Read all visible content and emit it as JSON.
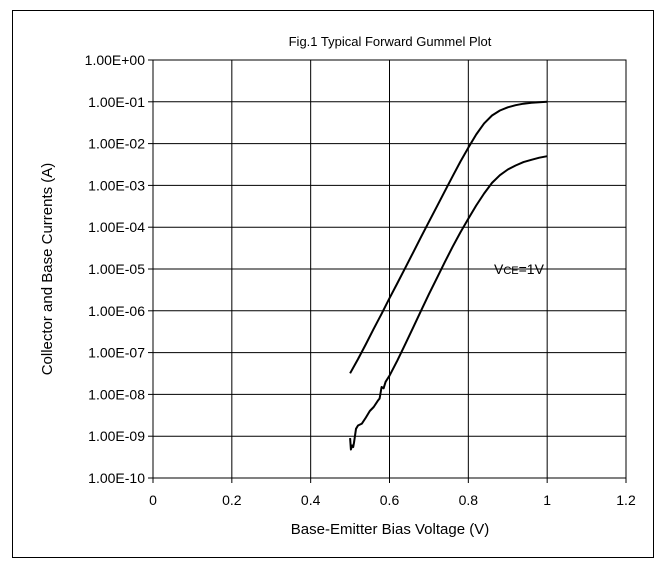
{
  "chart_data": {
    "type": "line",
    "title": "Fig.1 Typical Forward Gummel Plot",
    "xlabel": "Base-Emitter Bias Voltage (V)",
    "ylabel": "Collector and Base Currents (A)",
    "xlim": [
      0,
      1.2
    ],
    "ylim": [
      1e-10,
      1
    ],
    "yscale": "log",
    "grid": true,
    "x_ticks": [
      "0",
      "0.2",
      "0.4",
      "0.6",
      "0.8",
      "1",
      "1.2"
    ],
    "y_ticks": [
      "1.00E+00",
      "1.00E-01",
      "1.00E-02",
      "1.00E-03",
      "1.00E-04",
      "1.00E-05",
      "1.00E-06",
      "1.00E-07",
      "1.00E-08",
      "1.00E-09",
      "1.00E-10"
    ],
    "annotation": {
      "main": "V",
      "sub": "CE",
      "rest": "=1V"
    },
    "series": [
      {
        "x": [
          0.5,
          0.52,
          0.54,
          0.56,
          0.58,
          0.6,
          0.62,
          0.64,
          0.66,
          0.68,
          0.7,
          0.72,
          0.74,
          0.76,
          0.78,
          0.8,
          0.82,
          0.84,
          0.86,
          0.88,
          0.9,
          0.92,
          0.94,
          0.96,
          0.98,
          1.0
        ],
        "values": [
          3.2e-08,
          7e-08,
          1.6e-07,
          3.7e-07,
          8.5e-07,
          2e-06,
          4.6e-06,
          1.07e-05,
          2.5e-05,
          5.8e-05,
          0.000135,
          0.00031,
          0.00072,
          0.00165,
          0.0037,
          0.008,
          0.0165,
          0.0305,
          0.047,
          0.062,
          0.074,
          0.083,
          0.09,
          0.095,
          0.098,
          0.1
        ]
      },
      {
        "x": [
          0.5,
          0.502,
          0.505,
          0.508,
          0.51,
          0.515,
          0.52,
          0.53,
          0.54,
          0.55,
          0.56,
          0.57,
          0.575,
          0.58,
          0.585,
          0.59,
          0.6,
          0.62,
          0.64,
          0.66,
          0.68,
          0.7,
          0.72,
          0.74,
          0.76,
          0.78,
          0.8,
          0.82,
          0.84,
          0.86,
          0.88,
          0.9,
          0.92,
          0.94,
          0.96,
          0.98,
          1.0
        ],
        "values": [
          9e-10,
          4.8e-10,
          6e-10,
          5.5e-10,
          7e-10,
          1.5e-09,
          1.8e-09,
          2e-09,
          2.8e-09,
          4e-09,
          5e-09,
          7e-09,
          8e-09,
          1.5e-08,
          1.4e-08,
          2e-08,
          2.8e-08,
          6.5e-08,
          1.6e-07,
          4e-07,
          1e-06,
          2.5e-06,
          6e-06,
          1.45e-05,
          3.4e-05,
          7.5e-05,
          0.00016,
          0.00033,
          0.00064,
          0.00115,
          0.00175,
          0.0024,
          0.003,
          0.0036,
          0.0041,
          0.0046,
          0.005
        ]
      }
    ]
  }
}
